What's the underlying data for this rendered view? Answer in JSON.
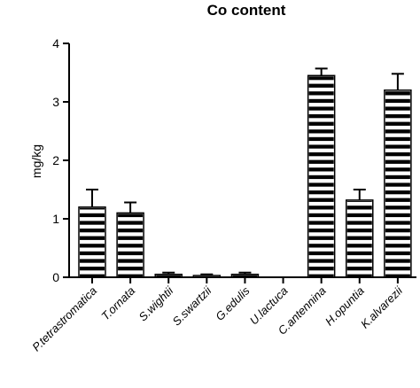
{
  "chart_data": {
    "type": "bar",
    "title": "Co content",
    "ylabel": "mg/kg",
    "xlabel": "",
    "ylim": [
      0,
      4
    ],
    "yticks": [
      0,
      1,
      2,
      3,
      4
    ],
    "categories": [
      "P.tetrastromatica",
      "T.ornata",
      "S.wightii",
      "S.swartzii",
      "G.edulis",
      "U.lactuca",
      "C.antennina",
      "H.opuntia",
      "K.alvarezii"
    ],
    "values": [
      1.2,
      1.1,
      0.05,
      0.03,
      0.05,
      0.0,
      3.45,
      1.32,
      3.2
    ],
    "errors": [
      0.3,
      0.18,
      0.03,
      0.02,
      0.03,
      0.0,
      0.12,
      0.18,
      0.28
    ],
    "bar_pattern": "horizontal-stripes",
    "bar_color": "#000000",
    "grid": false,
    "legend": "none"
  }
}
